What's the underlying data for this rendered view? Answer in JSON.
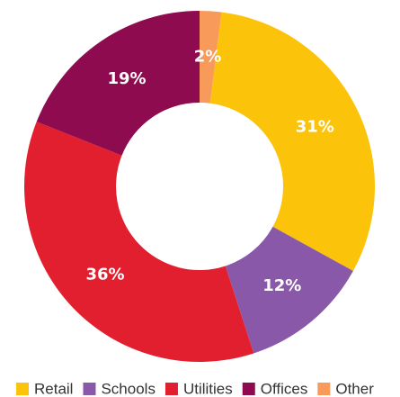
{
  "chart_data": {
    "type": "pie",
    "donut": true,
    "categories": [
      "Retail",
      "Schools",
      "Utilities",
      "Offices",
      "Other"
    ],
    "values": [
      31,
      12,
      36,
      19,
      2
    ],
    "value_labels": [
      "31%",
      "12%",
      "36%",
      "19%",
      "2%"
    ],
    "colors": [
      "#fcc30b",
      "#8a58a8",
      "#e21f2e",
      "#8e0b4f",
      "#f79a5a"
    ],
    "legend": "bottom"
  }
}
